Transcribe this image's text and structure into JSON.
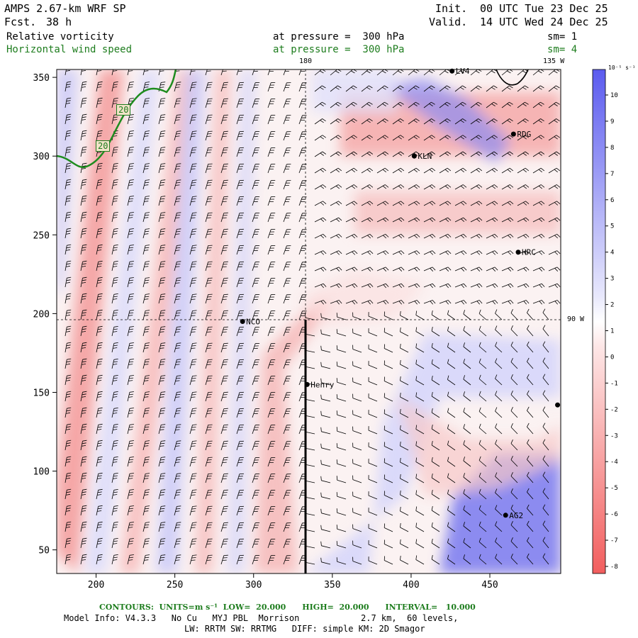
{
  "header": {
    "model": "AMPS 2.67-km WRF SP",
    "fcst_label": "Fcst.",
    "fcst_value": "38 h",
    "init_label": "Init.",
    "init_value": "00 UTC Tue 23 Dec 25",
    "valid_label": "Valid.",
    "valid_value": "14 UTC Wed 24 Dec 25",
    "field1": "Relative vorticity",
    "field1_level": "at pressure =  300 hPa",
    "field1_sm": "sm= 1",
    "field2": "Horizontal wind speed",
    "field2_level": "at pressure =  300 hPa",
    "field2_sm": "sm= 4"
  },
  "map": {
    "lon_label_180": "180",
    "lon_label_135w": "135 W",
    "lon_label_90w": "90 W",
    "x_ticks": [
      "200",
      "250",
      "300",
      "350",
      "400",
      "450"
    ],
    "y_ticks": [
      "350",
      "300",
      "250",
      "200",
      "150",
      "100",
      "50"
    ],
    "stations": [
      {
        "name": "LV4",
        "x": 426,
        "y": 354
      },
      {
        "name": "RDG",
        "x": 465,
        "y": 314
      },
      {
        "name": "KLN",
        "x": 402,
        "y": 300
      },
      {
        "name": "HRC",
        "x": 468,
        "y": 239
      },
      {
        "name": "NCO",
        "x": 293,
        "y": 195
      },
      {
        "name": "Henry",
        "x": 334,
        "y": 155
      },
      {
        "name": "",
        "x": 493,
        "y": 142
      },
      {
        "name": "AG2",
        "x": 460,
        "y": 72
      }
    ],
    "contour_labels": [
      "20",
      "20"
    ],
    "colors": {
      "positive": "#5b5bef",
      "negative": "#f46a6a",
      "contour": "#1e8c1e"
    }
  },
  "colorbar": {
    "units": "10⁻⁵ s⁻¹",
    "ticks": [
      "10",
      "9",
      "8",
      "7",
      "6",
      "5",
      "4",
      "3",
      "2",
      "1",
      "0",
      "-1",
      "-2",
      "-3",
      "-4",
      "-5",
      "-6",
      "-7",
      "-8"
    ]
  },
  "footer": {
    "contours_line": "CONTOURS:  UNITS=m s⁻¹  LOW=  20.000      HIGH=  20.000      INTERVAL=   10.000",
    "model_info": "Model Info: V4.3.3   No Cu   MYJ PBL  Morrison            2.7 km,  60 levels,",
    "physics": "LW: RRTM SW: RRTMG   DIFF: simple KM: 2D Smagor"
  }
}
